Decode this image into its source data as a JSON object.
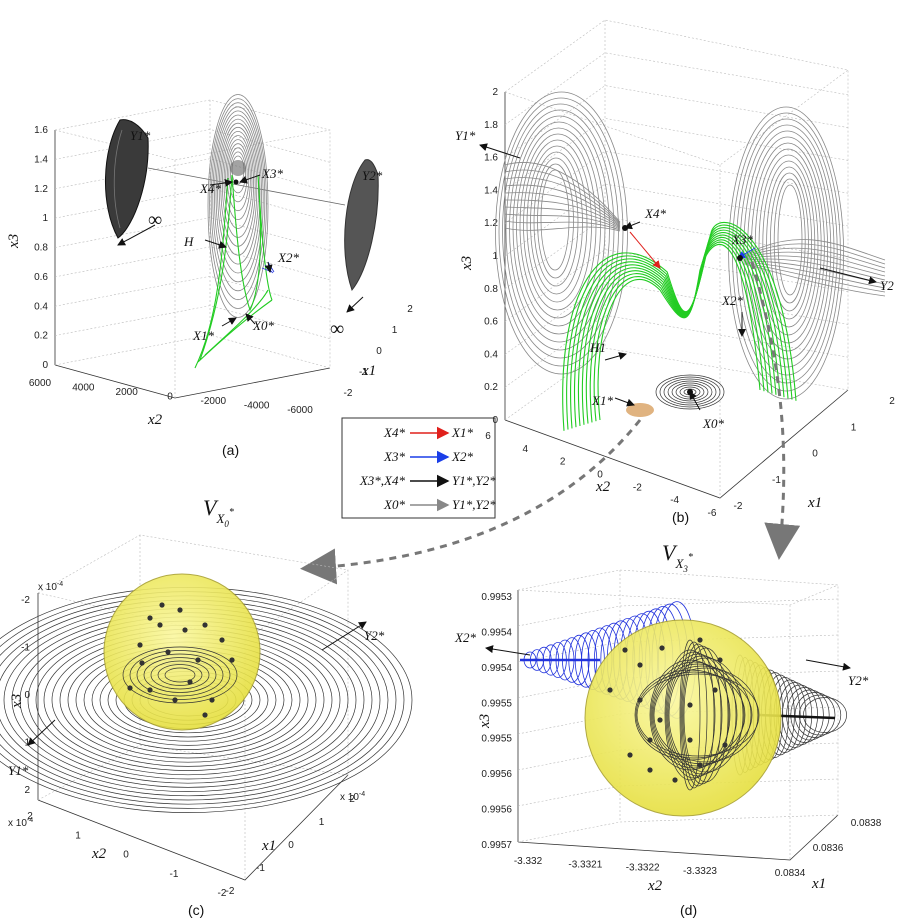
{
  "panel_a": {
    "caption": "(a)",
    "x3_label": "x3",
    "x2_label": "x2",
    "x1_label": "x1",
    "z_ticks": [
      "0",
      "0.2",
      "0.4",
      "0.6",
      "0.8",
      "1",
      "1.2",
      "1.4",
      "1.6"
    ],
    "x2_ticks": [
      "6000",
      "4000",
      "2000",
      "0",
      "-2000",
      "-4000",
      "-6000"
    ],
    "x1_ticks": [
      "2",
      "1",
      "0",
      "-1",
      "-2"
    ],
    "labels": {
      "Y1": "Y1*",
      "Y2": "Y2*",
      "X4": "X4*",
      "X3": "X3*",
      "X2": "X2*",
      "X0": "X0*",
      "X1": "X1*",
      "H": "H",
      "inf1": "∞",
      "inf2": "∞"
    }
  },
  "legend": {
    "rows": [
      {
        "from": "X4*",
        "to": "X1*",
        "color": "#e0201c"
      },
      {
        "from": "X3*",
        "to": "X2*",
        "color": "#1a3ee8"
      },
      {
        "from": "X3*,X4*",
        "to": "Y1*,Y2*",
        "color": "#111111"
      },
      {
        "from": "X0*",
        "to": "Y1*,Y2*",
        "color": "#888888"
      }
    ]
  },
  "panel_b": {
    "caption": "(b)",
    "x3_label": "x3",
    "x2_label": "x2",
    "x1_label": "x1",
    "z_ticks": [
      "0",
      "0.2",
      "0.4",
      "0.6",
      "0.8",
      "1",
      "1.2",
      "1.4",
      "1.6",
      "1.8",
      "2"
    ],
    "x2_ticks": [
      "6",
      "4",
      "2",
      "0",
      "-2",
      "-4",
      "-6"
    ],
    "x1_ticks": [
      "-2",
      "-1",
      "0",
      "1",
      "2"
    ],
    "labels": {
      "Y1": "Y1*",
      "Y2": "Y2",
      "X4": "X4*",
      "X3": "X3*",
      "X2": "X2*",
      "X1": "X1*",
      "X0": "X0*",
      "H1": "H1"
    }
  },
  "panel_c": {
    "caption": "(c)",
    "title": "V X0*",
    "x3_label": "x3",
    "x2_label": "x2",
    "x1_label": "x1",
    "exp_top": "x 10",
    "exp_x2": "x 10",
    "exp_x1": "x 10",
    "z_ticks": [
      "2",
      "1",
      "0",
      "-1",
      "-2"
    ],
    "x2_ticks": [
      "2",
      "1",
      "0",
      "-1",
      "-2"
    ],
    "x1_ticks": [
      "-2",
      "-1",
      "0",
      "1",
      "2"
    ],
    "labels": {
      "Y2": "Y2*",
      "Y1": "Y1*"
    }
  },
  "panel_d": {
    "caption": "(d)",
    "title": "V X3*",
    "x3_label": "x3",
    "x2_label": "x2",
    "x1_label": "x1",
    "z_ticks": [
      "0.9957",
      "0.9956",
      "0.9956",
      "0.9955",
      "0.9955",
      "0.9954",
      "0.9954",
      "0.9953"
    ],
    "x2_ticks": [
      "-3.332",
      "-3.3321",
      "-3.3322",
      "-3.3323"
    ],
    "x1_ticks": [
      "0.0834",
      "0.0836",
      "0.0838"
    ],
    "labels": {
      "X2": "X2*",
      "Y2": "Y2*"
    }
  },
  "colors": {
    "sphere": "#f2ee5a",
    "green": "#22cc22",
    "blue": "#2233dd"
  }
}
